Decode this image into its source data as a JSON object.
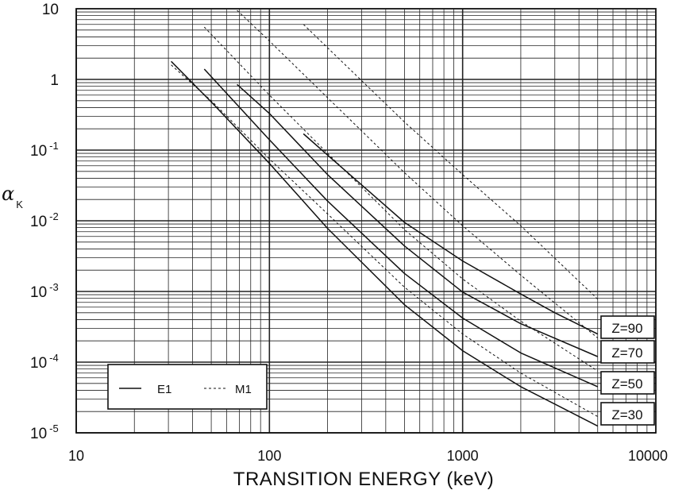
{
  "chart_data": {
    "type": "line",
    "xlabel": "TRANSITION ENERGY (keV)",
    "ylabel": "α",
    "ylabel_subscript": "K",
    "xscale": "log",
    "yscale": "log",
    "xlim": [
      10,
      10000
    ],
    "ylim": [
      1e-05,
      10
    ],
    "grid": true,
    "x_ticks": [
      "10",
      "100",
      "1000",
      "10000"
    ],
    "y_ticks": [
      {
        "base": "10",
        "exp": "-5",
        "value": 1e-05
      },
      {
        "base": "10",
        "exp": "-4",
        "value": 0.0001
      },
      {
        "base": "10",
        "exp": "-3",
        "value": 0.001
      },
      {
        "base": "10",
        "exp": "-2",
        "value": 0.01
      },
      {
        "base": "10",
        "exp": "-1",
        "value": 0.1
      },
      {
        "base": "1",
        "exp": "",
        "value": 1
      },
      {
        "base": "10",
        "exp": "",
        "value": 10
      }
    ],
    "legend": {
      "placement": "bottom-left",
      "entries": [
        {
          "label": "E1",
          "style": "solid"
        },
        {
          "label": "M1",
          "style": "dashed"
        }
      ]
    },
    "series": [
      {
        "type": "E1",
        "z": "Z=30",
        "x": [
          31,
          50,
          100,
          200,
          500,
          1000,
          2000,
          5000
        ],
        "y": [
          1.8,
          0.48,
          0.065,
          0.0078,
          0.00065,
          0.000145,
          4.5e-05,
          1.25e-05
        ]
      },
      {
        "type": "E1",
        "z": "Z=50",
        "x": [
          46,
          100,
          200,
          500,
          1000,
          2000,
          5000
        ],
        "y": [
          1.4,
          0.14,
          0.019,
          0.0018,
          0.00042,
          0.000135,
          4.5e-05
        ]
      },
      {
        "type": "E1",
        "z": "Z=70",
        "x": [
          68,
          100,
          200,
          500,
          1000,
          2000,
          5000
        ],
        "y": [
          0.85,
          0.33,
          0.045,
          0.0044,
          0.00098,
          0.00035,
          0.00012
        ]
      },
      {
        "type": "E1",
        "z": "Z=90",
        "x": [
          150,
          200,
          500,
          1000,
          2000,
          3000,
          5000
        ],
        "y": [
          0.17,
          0.085,
          0.0095,
          0.0027,
          0.00092,
          0.0005,
          0.00025
        ]
      },
      {
        "type": "M1",
        "z": "Z=30",
        "x": [
          31,
          50,
          100,
          200,
          500,
          1000,
          2000,
          5000
        ],
        "y": [
          1.6,
          0.5,
          0.075,
          0.0125,
          0.00115,
          0.00025,
          7e-05,
          1.7e-05
        ]
      },
      {
        "type": "M1",
        "z": "Z=50",
        "x": [
          46,
          100,
          200,
          500,
          1000,
          2000,
          5000
        ],
        "y": [
          5.5,
          0.6,
          0.09,
          0.0075,
          0.0015,
          0.00038,
          7.5e-05
        ]
      },
      {
        "type": "M1",
        "z": "Z=70",
        "x": [
          68,
          100,
          200,
          500,
          1000,
          2000,
          5000
        ],
        "y": [
          9.5,
          3.5,
          0.55,
          0.048,
          0.0085,
          0.0017,
          0.00022
        ]
      },
      {
        "type": "M1",
        "z": "Z=90",
        "x": [
          150,
          200,
          500,
          1000,
          2000,
          5000
        ],
        "y": [
          6.0,
          2.8,
          0.25,
          0.045,
          0.0085,
          0.00078
        ]
      }
    ],
    "z_labels": [
      "Z=90",
      "Z=70",
      "Z=50",
      "Z=30"
    ]
  }
}
